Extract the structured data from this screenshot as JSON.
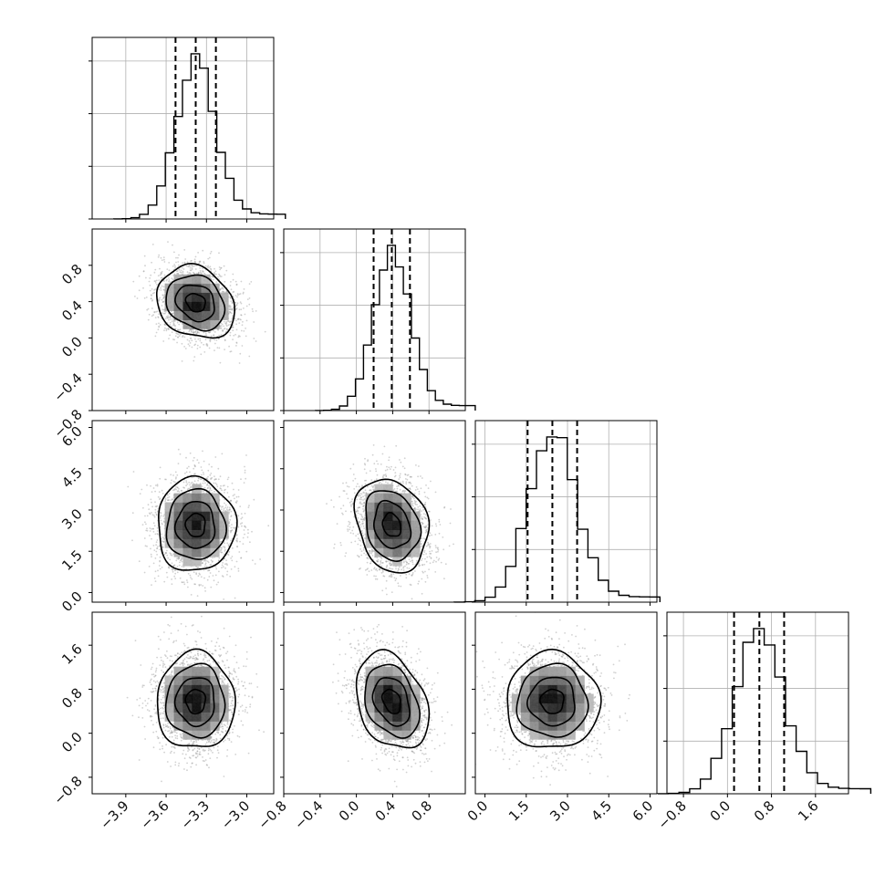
{
  "chart_data": {
    "type": "corner",
    "grid": true,
    "colors": {
      "frame": "#000000",
      "grid": "#b0b0b0",
      "points": "#9a9a9a",
      "contour": "#000000",
      "histogram": "#000000"
    },
    "parameters": [
      {
        "range": [
          -4.15,
          -2.8
        ],
        "ticks": [
          "−3.9",
          "−3.6",
          "−3.3",
          "−3.0"
        ],
        "tick_values": [
          -3.9,
          -3.6,
          -3.3,
          -3.0
        ],
        "median": -3.38,
        "quantiles": [
          -3.53,
          -3.23
        ],
        "sigma": 0.145,
        "hist_peak": 1.0
      },
      {
        "range": [
          -0.8,
          1.2
        ],
        "ticks": [
          "−0.8",
          "−0.4",
          "0.0",
          "0.4",
          "0.8"
        ],
        "tick_values": [
          -0.8,
          -0.4,
          0.0,
          0.4,
          0.8
        ],
        "median": 0.39,
        "quantiles": [
          0.19,
          0.59
        ],
        "sigma": 0.2,
        "hist_peak": 1.0
      },
      {
        "range": [
          -0.35,
          6.25
        ],
        "ticks": [
          "0.0",
          "1.5",
          "3.0",
          "4.5",
          "6.0"
        ],
        "tick_values": [
          0.0,
          1.5,
          3.0,
          4.5,
          6.0
        ],
        "median": 2.45,
        "quantiles": [
          1.55,
          3.35
        ],
        "sigma": 0.85,
        "hist_peak": 1.0
      },
      {
        "range": [
          -1.1,
          2.2
        ],
        "ticks": [
          "−0.8",
          "0.0",
          "0.8",
          "1.6"
        ],
        "tick_values": [
          -0.8,
          0.0,
          0.8,
          1.6
        ],
        "median": 0.58,
        "quantiles": [
          0.12,
          1.03
        ],
        "sigma": 0.44,
        "hist_peak": 1.0
      }
    ],
    "correlations": [
      [
        0,
        1,
        -0.2
      ],
      [
        0,
        2,
        0.0
      ],
      [
        0,
        3,
        0.0
      ],
      [
        1,
        2,
        -0.2
      ],
      [
        1,
        3,
        -0.3
      ],
      [
        2,
        3,
        0.0
      ]
    ],
    "contour_levels_sigma": [
      0.5,
      1.0,
      1.5,
      2.0
    ]
  }
}
